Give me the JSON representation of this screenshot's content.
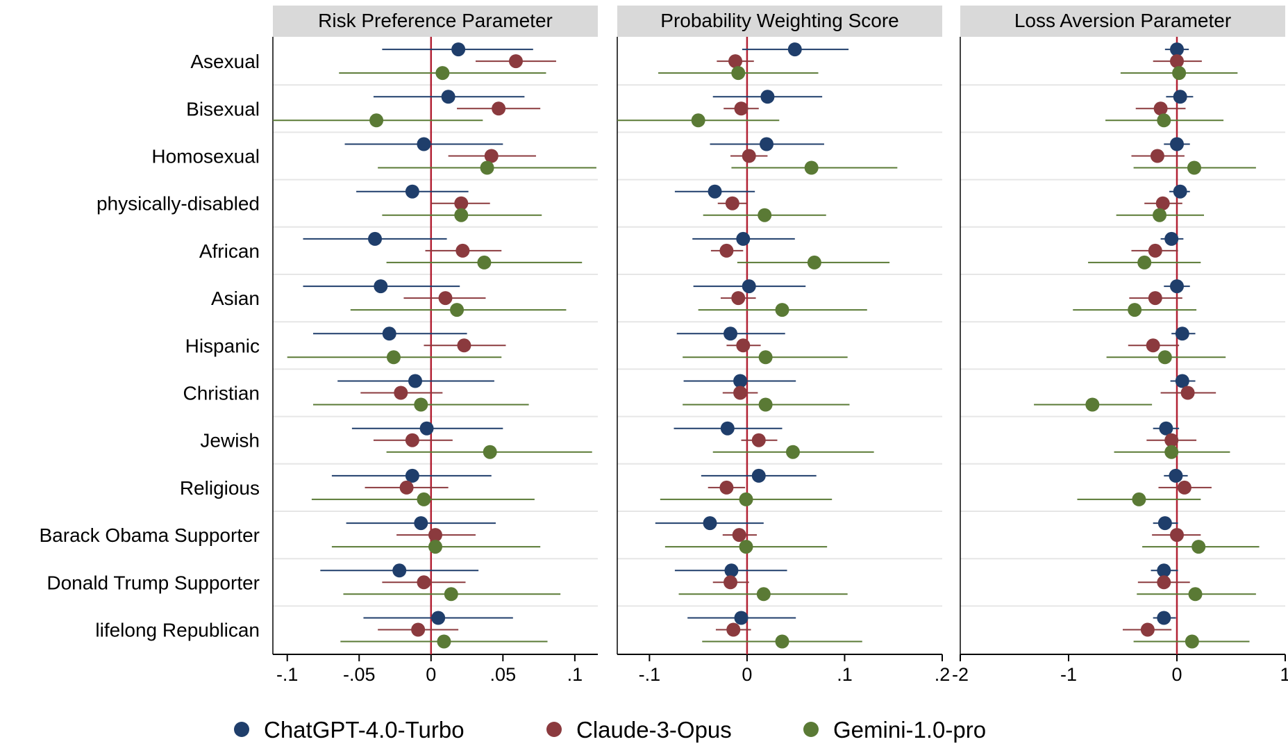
{
  "chart_data": {
    "type": "scatter",
    "subtype": "coefficient-plot",
    "rows": [
      "Asexual",
      "Bisexual",
      "Homosexual",
      "physically-disabled",
      "African",
      "Asian",
      "Hispanic",
      "Christian",
      "Jewish",
      "Religious",
      "Barack Obama Supporter",
      "Donald Trump Supporter",
      "lifelong Republican"
    ],
    "series": [
      {
        "name": "ChatGPT-4.0-Turbo",
        "color": "#1f3e6b"
      },
      {
        "name": "Claude-3-Opus",
        "color": "#8b3a3e"
      },
      {
        "name": "Gemini-1.0-pro",
        "color": "#5a7a35"
      }
    ],
    "panels": [
      {
        "title": "Risk Preference Parameter",
        "xlim": [
          -0.11,
          0.116
        ],
        "ticks": [
          -0.1,
          -0.05,
          0,
          0.05,
          0.1
        ],
        "tick_labels": [
          "-.1",
          "-.05",
          "0",
          ".05",
          ".1"
        ],
        "ref_line": 0,
        "estimates": [
          [
            [
              0.019,
              -0.034,
              0.071
            ],
            [
              0.059,
              0.031,
              0.087
            ],
            [
              0.008,
              -0.064,
              0.08
            ]
          ],
          [
            [
              0.012,
              -0.04,
              0.065
            ],
            [
              0.047,
              0.018,
              0.076
            ],
            [
              -0.038,
              -0.112,
              0.036
            ]
          ],
          [
            [
              -0.005,
              -0.06,
              0.05
            ],
            [
              0.042,
              0.012,
              0.073
            ],
            [
              0.039,
              -0.037,
              0.115
            ]
          ],
          [
            [
              -0.013,
              -0.052,
              0.026
            ],
            [
              0.021,
              0,
              0.041
            ],
            [
              0.021,
              -0.034,
              0.077
            ]
          ],
          [
            [
              -0.039,
              -0.089,
              0.011
            ],
            [
              0.022,
              -0.004,
              0.049
            ],
            [
              0.037,
              -0.031,
              0.105
            ]
          ],
          [
            [
              -0.035,
              -0.089,
              0.02
            ],
            [
              0.01,
              -0.019,
              0.038
            ],
            [
              0.018,
              -0.056,
              0.094
            ]
          ],
          [
            [
              -0.029,
              -0.082,
              0.025
            ],
            [
              0.023,
              -0.005,
              0.052
            ],
            [
              -0.026,
              -0.1,
              0.049
            ]
          ],
          [
            [
              -0.011,
              -0.065,
              0.044
            ],
            [
              -0.021,
              -0.049,
              0.008
            ],
            [
              -0.007,
              -0.082,
              0.068
            ]
          ],
          [
            [
              -0.003,
              -0.055,
              0.05
            ],
            [
              -0.013,
              -0.04,
              0.015
            ],
            [
              0.041,
              -0.031,
              0.112
            ]
          ],
          [
            [
              -0.013,
              -0.069,
              0.042
            ],
            [
              -0.017,
              -0.046,
              0.012
            ],
            [
              -0.005,
              -0.083,
              0.072
            ]
          ],
          [
            [
              -0.007,
              -0.059,
              0.045
            ],
            [
              0.003,
              -0.024,
              0.031
            ],
            [
              0.003,
              -0.069,
              0.076
            ]
          ],
          [
            [
              -0.022,
              -0.077,
              0.033
            ],
            [
              -0.005,
              -0.034,
              0.024
            ],
            [
              0.014,
              -0.061,
              0.09
            ]
          ],
          [
            [
              0.005,
              -0.047,
              0.057
            ],
            [
              -0.009,
              -0.037,
              0.019
            ],
            [
              0.009,
              -0.063,
              0.081
            ]
          ]
        ]
      },
      {
        "title": "Probability Weighting Score",
        "xlim": [
          -0.133,
          0.2
        ],
        "ticks": [
          -0.1,
          0,
          0.1,
          0.2
        ],
        "tick_labels": [
          "-.1",
          "0",
          ".1",
          ".2"
        ],
        "ref_line": 0,
        "estimates": [
          [
            [
              0.049,
              -0.005,
              0.104
            ],
            [
              -0.012,
              -0.031,
              0.007
            ],
            [
              -0.009,
              -0.091,
              0.073
            ]
          ],
          [
            [
              0.021,
              -0.035,
              0.077
            ],
            [
              -0.006,
              -0.024,
              0.012
            ],
            [
              -0.05,
              -0.133,
              0.033
            ]
          ],
          [
            [
              0.02,
              -0.038,
              0.079
            ],
            [
              0.002,
              -0.017,
              0.021
            ],
            [
              0.066,
              -0.016,
              0.154
            ]
          ],
          [
            [
              -0.033,
              -0.074,
              0.008
            ],
            [
              -0.015,
              -0.03,
              0
            ],
            [
              0.018,
              -0.045,
              0.081
            ]
          ],
          [
            [
              -0.004,
              -0.056,
              0.049
            ],
            [
              -0.021,
              -0.037,
              -0.004
            ],
            [
              0.069,
              -0.01,
              0.146
            ]
          ],
          [
            [
              0.002,
              -0.055,
              0.06
            ],
            [
              -0.009,
              -0.027,
              0.009
            ],
            [
              0.036,
              -0.05,
              0.123
            ]
          ],
          [
            [
              -0.017,
              -0.072,
              0.039
            ],
            [
              -0.004,
              -0.021,
              0.014
            ],
            [
              0.019,
              -0.066,
              0.103
            ]
          ],
          [
            [
              -0.007,
              -0.065,
              0.05
            ],
            [
              -0.007,
              -0.025,
              0.011
            ],
            [
              0.019,
              -0.066,
              0.105
            ]
          ],
          [
            [
              -0.02,
              -0.075,
              0.036
            ],
            [
              0.012,
              -0.006,
              0.031
            ],
            [
              0.047,
              -0.035,
              0.13
            ]
          ],
          [
            [
              0.012,
              -0.047,
              0.071
            ],
            [
              -0.021,
              -0.04,
              -0.002
            ],
            [
              -0.001,
              -0.089,
              0.087
            ]
          ],
          [
            [
              -0.038,
              -0.094,
              0.017
            ],
            [
              -0.008,
              -0.025,
              0.01
            ],
            [
              -0.001,
              -0.084,
              0.082
            ]
          ],
          [
            [
              -0.016,
              -0.074,
              0.041
            ],
            [
              -0.017,
              -0.035,
              0.002
            ],
            [
              0.017,
              -0.07,
              0.103
            ]
          ],
          [
            [
              -0.006,
              -0.061,
              0.05
            ],
            [
              -0.014,
              -0.032,
              0.004
            ],
            [
              0.036,
              -0.046,
              0.118
            ]
          ]
        ]
      },
      {
        "title": "Loss Aversion Parameter",
        "xlim": [
          -2,
          1
        ],
        "ticks": [
          -2,
          -1,
          0,
          1
        ],
        "tick_labels": [
          "-2",
          "-1",
          "0",
          "1"
        ],
        "ref_line": 0,
        "estimates": [
          [
            [
              0,
              -0.11,
              0.11
            ],
            [
              0,
              -0.22,
              0.23
            ],
            [
              0.02,
              -0.52,
              0.56
            ]
          ],
          [
            [
              0.03,
              -0.1,
              0.15
            ],
            [
              -0.15,
              -0.38,
              0.08
            ],
            [
              -0.12,
              -0.66,
              0.43
            ]
          ],
          [
            [
              0,
              -0.12,
              0.12
            ],
            [
              -0.18,
              -0.42,
              0.07
            ],
            [
              0.16,
              -0.4,
              0.73
            ]
          ],
          [
            [
              0.03,
              -0.07,
              0.12
            ],
            [
              -0.13,
              -0.3,
              0.05
            ],
            [
              -0.16,
              -0.56,
              0.25
            ]
          ],
          [
            [
              -0.05,
              -0.15,
              0.06
            ],
            [
              -0.2,
              -0.42,
              0.01
            ],
            [
              -0.3,
              -0.82,
              0.22
            ]
          ],
          [
            [
              0,
              -0.12,
              0.12
            ],
            [
              -0.2,
              -0.44,
              0.05
            ],
            [
              -0.39,
              -0.96,
              0.18
            ]
          ],
          [
            [
              0.05,
              -0.05,
              0.17
            ],
            [
              -0.22,
              -0.45,
              0.02
            ],
            [
              -0.11,
              -0.65,
              0.45
            ]
          ],
          [
            [
              0.05,
              -0.06,
              0.17
            ],
            [
              0.1,
              -0.15,
              0.36
            ],
            [
              -0.78,
              -1.32,
              -0.23
            ]
          ],
          [
            [
              -0.1,
              -0.22,
              0.02
            ],
            [
              -0.05,
              -0.28,
              0.18
            ],
            [
              -0.05,
              -0.58,
              0.49
            ]
          ],
          [
            [
              -0.01,
              -0.12,
              0.1
            ],
            [
              0.07,
              -0.17,
              0.32
            ],
            [
              -0.35,
              -0.92,
              0.22
            ]
          ],
          [
            [
              -0.11,
              -0.22,
              0.01
            ],
            [
              0,
              -0.23,
              0.22
            ],
            [
              0.2,
              -0.32,
              0.76
            ]
          ],
          [
            [
              -0.12,
              -0.24,
              0.01
            ],
            [
              -0.12,
              -0.36,
              0.12
            ],
            [
              0.17,
              -0.37,
              0.73
            ]
          ],
          [
            [
              -0.12,
              -0.22,
              -0.01
            ],
            [
              -0.27,
              -0.5,
              -0.05
            ],
            [
              0.14,
              -0.4,
              0.67
            ]
          ]
        ]
      }
    ]
  }
}
